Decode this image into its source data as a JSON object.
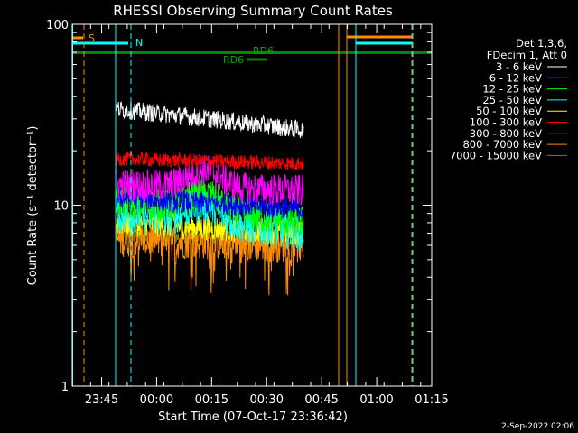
{
  "chart_data": {
    "type": "line",
    "title": "RHESSI Observing Summary Count Rates",
    "xlabel": "Start Time (07-Oct-17 23:36:42)",
    "ylabel": "Count Rate (s⁻¹ detector⁻¹)",
    "yscale": "log",
    "ylim": [
      1,
      100
    ],
    "xlim_minutes": [
      -3,
      95
    ],
    "yticks": [
      {
        "v": 1,
        "label": "1"
      },
      {
        "v": 10,
        "label": "10"
      },
      {
        "v": 100,
        "label": "100"
      }
    ],
    "xticks": [
      {
        "t": 5,
        "label": "23:45"
      },
      {
        "t": 20,
        "label": "00:00"
      },
      {
        "t": 35,
        "label": "00:15"
      },
      {
        "t": 50,
        "label": "00:30"
      },
      {
        "t": 65,
        "label": "00:45"
      },
      {
        "t": 80,
        "label": "01:00"
      },
      {
        "t": 95,
        "label": "01:15"
      }
    ],
    "legend_header": [
      "Det 1,3,6,",
      "FDecim 1, Att 0"
    ],
    "legend_position": "right",
    "series": [
      {
        "name": "3 - 6 keV",
        "color": "#ffffff",
        "base": 34,
        "end": 26,
        "noise": 0.05
      },
      {
        "name": "6 - 12 keV",
        "color": "#ff00ff",
        "base": 13,
        "end": 12,
        "noise": 0.09
      },
      {
        "name": "12 - 25 keV",
        "color": "#00ff00",
        "base": 10.5,
        "end": 8,
        "noise": 0.09
      },
      {
        "name": "25 - 50 keV",
        "color": "#00ffff",
        "base": 9,
        "end": 7,
        "noise": 0.1
      },
      {
        "name": "50 - 100 keV",
        "color": "#ffff00",
        "base": 8,
        "end": 7,
        "noise": 0.07
      },
      {
        "name": "100 - 300 keV",
        "color": "#ff0000",
        "base": 18,
        "end": 17,
        "noise": 0.04
      },
      {
        "name": "300 - 800 keV",
        "color": "#0000ff",
        "base": 11,
        "end": 9.5,
        "noise": 0.06
      },
      {
        "name": "800 - 7000 keV",
        "color": "#ff8c00",
        "base": 6.5,
        "end": 6,
        "noise": 0.1
      },
      {
        "name": "7000 - 15000 keV",
        "color": "#808000",
        "base": 6.8,
        "end": 6.5,
        "noise": 0.05
      }
    ],
    "data_start_minutes": 9,
    "data_end_minutes": 60,
    "annotations": [
      {
        "text": "S",
        "color": "#ff8c00"
      },
      {
        "text": "N",
        "color": "#00ffff"
      },
      {
        "text": "RD6",
        "color": "#008800"
      },
      {
        "text": "RD6",
        "color": "#008800"
      }
    ],
    "color_frame": "#ffffff"
  },
  "footer_date": "2-Sep-2022 02:06"
}
